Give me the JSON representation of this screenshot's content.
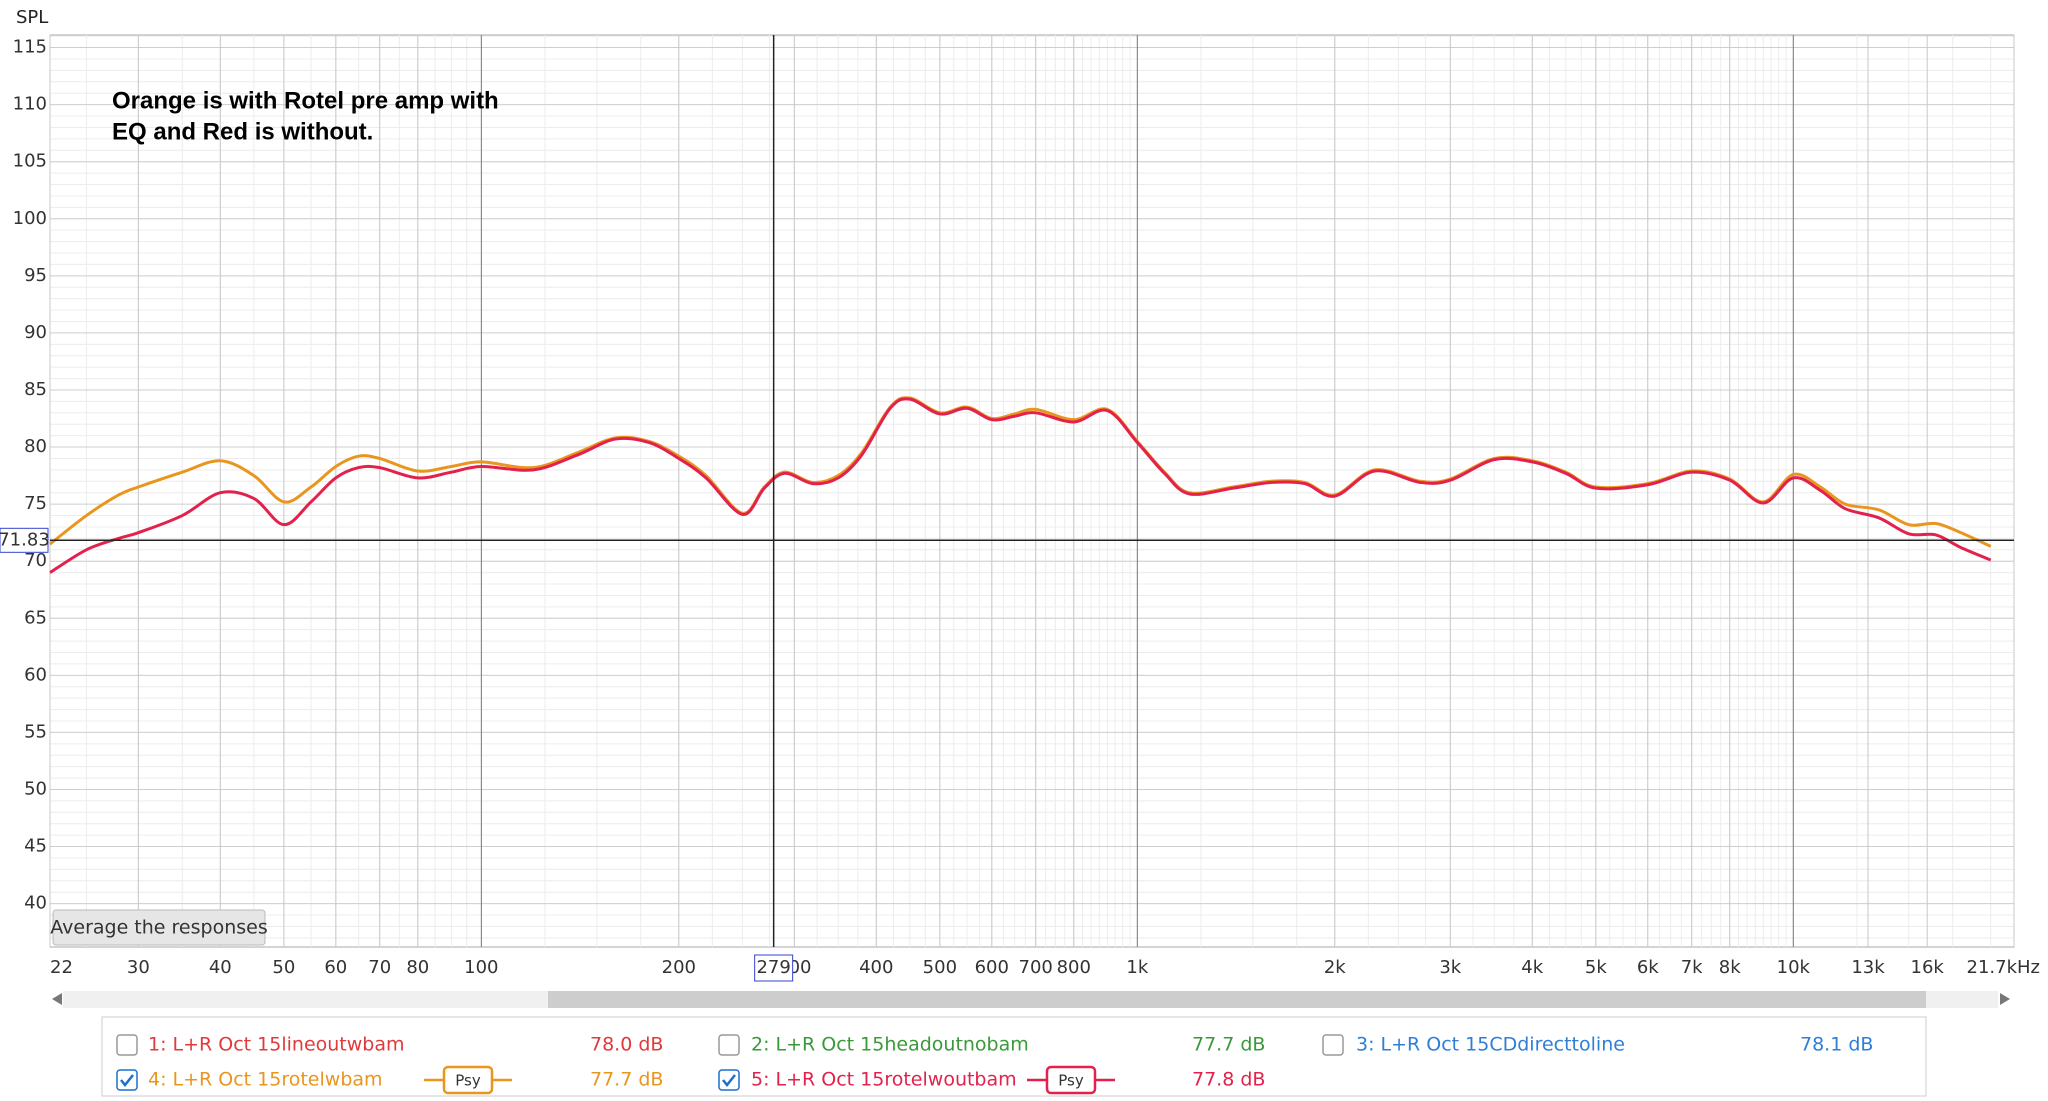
{
  "chart_data": {
    "type": "line",
    "y_axis_label": "SPL",
    "annotation": [
      "Orange is with Rotel pre amp with",
      "EQ and Red is without."
    ],
    "log_x": true,
    "grid": true,
    "xlim": [
      22,
      21700
    ],
    "ylim": [
      36.2,
      116.1
    ],
    "xticks": [
      22,
      30,
      40,
      50,
      60,
      70,
      80,
      100,
      200,
      300,
      400,
      500,
      600,
      700,
      800,
      {
        "value": 1000,
        "label": "1k"
      },
      {
        "value": 2000,
        "label": "2k"
      },
      {
        "value": 3000,
        "label": "3k"
      },
      {
        "value": 4000,
        "label": "4k"
      },
      {
        "value": 5000,
        "label": "5k"
      },
      {
        "value": 6000,
        "label": "6k"
      },
      {
        "value": 7000,
        "label": "7k"
      },
      {
        "value": 8000,
        "label": "8k"
      },
      {
        "value": 10000,
        "label": "10k"
      },
      {
        "value": 13000,
        "label": "13k"
      },
      {
        "value": 16000,
        "label": "16k"
      },
      {
        "value": 21700,
        "label": "21.7kHz"
      }
    ],
    "yticks": [
      40,
      45,
      50,
      55,
      60,
      65,
      70,
      75,
      80,
      85,
      90,
      95,
      100,
      105,
      110,
      115
    ],
    "cursor_x": 279,
    "cursor_y": 71.83,
    "x": [
      22,
      25,
      28,
      30,
      35,
      40,
      45,
      50,
      55,
      60,
      65,
      70,
      80,
      90,
      100,
      120,
      140,
      160,
      180,
      200,
      220,
      250,
      270,
      290,
      320,
      350,
      380,
      420,
      450,
      500,
      550,
      600,
      650,
      700,
      800,
      900,
      1000,
      1100,
      1200,
      1400,
      1600,
      1800,
      2000,
      2300,
      2700,
      3000,
      3500,
      4000,
      4500,
      5000,
      6000,
      7000,
      8000,
      9000,
      10000,
      11000,
      12000,
      13500,
      15000,
      16500,
      18000,
      20000
    ],
    "series": [
      {
        "color": "#e8961e",
        "values": [
          71.5,
          74,
          75.8,
          76.5,
          77.8,
          78.8,
          77.5,
          75.2,
          76.5,
          78.3,
          79.2,
          79,
          77.9,
          78.3,
          78.7,
          78.2,
          79.5,
          80.8,
          80.5,
          79.2,
          77.5,
          74.2,
          76.5,
          77.8,
          76.9,
          77.5,
          79.5,
          83.5,
          84.3,
          83,
          83.5,
          82.5,
          82.9,
          83.3,
          82.4,
          83.3,
          80.5,
          77.8,
          76,
          76.5,
          77,
          76.9,
          75.8,
          78,
          77,
          77.2,
          79,
          78.8,
          77.8,
          76.5,
          76.8,
          77.9,
          77.2,
          75.2,
          77.6,
          76.5,
          75,
          74.5,
          73.2,
          73.3,
          72.5,
          71.3
        ]
      },
      {
        "color": "#e2224c",
        "values": [
          69,
          71,
          72,
          72.5,
          74,
          76,
          75.5,
          73.2,
          75.2,
          77.3,
          78.2,
          78.2,
          77.3,
          77.8,
          78.3,
          78,
          79.3,
          80.7,
          80.4,
          79,
          77.3,
          74.1,
          76.4,
          77.7,
          76.8,
          77.3,
          79.3,
          83.4,
          84.2,
          82.9,
          83.4,
          82.4,
          82.7,
          83,
          82.2,
          83.2,
          80.4,
          77.7,
          75.9,
          76.4,
          76.9,
          76.8,
          75.7,
          77.9,
          76.9,
          77.1,
          78.9,
          78.7,
          77.7,
          76.4,
          76.7,
          77.8,
          77.1,
          75.1,
          77.3,
          76.2,
          74.6,
          73.8,
          72.4,
          72.3,
          71.2,
          70.1
        ]
      }
    ]
  },
  "button": "Average the responses",
  "legend": [
    {
      "label": "1: L+R Oct 15lineoutwbam",
      "level": "78.0 dB",
      "checked": false,
      "color": "#e03a3a"
    },
    {
      "label": "2: L+R Oct 15headoutnobam",
      "level": "77.7 dB",
      "checked": false,
      "color": "#3a9a3a"
    },
    {
      "label": "3: L+R Oct 15CDdirecttoline",
      "level": "78.1 dB",
      "checked": false,
      "color": "#2f7fd8"
    },
    {
      "label": "4: L+R Oct 15rotelwbam",
      "level": "77.7 dB",
      "checked": true,
      "color": "#e8961e",
      "smoothing": "Psy"
    },
    {
      "label": "5: L+R Oct 15rotelwoutbam",
      "level": "77.8 dB",
      "checked": true,
      "color": "#e2224c",
      "smoothing": "Psy"
    }
  ]
}
